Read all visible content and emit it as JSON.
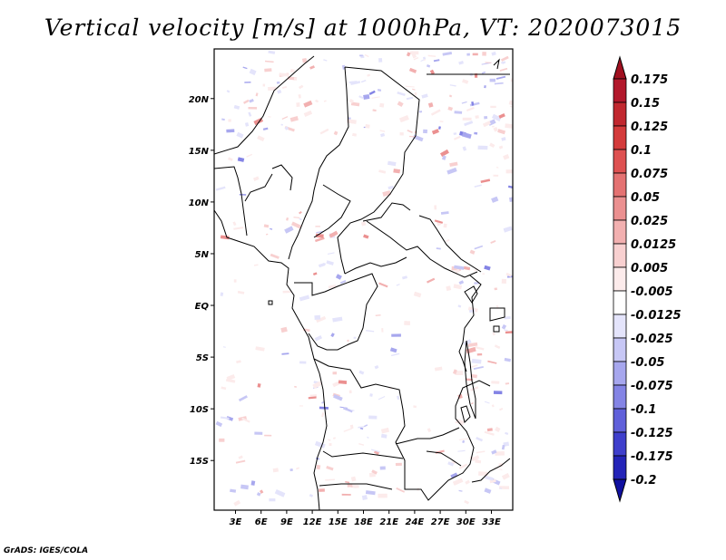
{
  "title": "Vertical velocity [m/s] at 1000hPa, VT: 2020073015",
  "credit": "GrADS: IGES/COLA",
  "map": {
    "lat_labels": [
      "20N",
      "15N",
      "10N",
      "5N",
      "EQ",
      "5S",
      "10S",
      "15S"
    ],
    "lat_values": [
      20,
      15,
      10,
      5,
      0,
      -5,
      -10,
      -15
    ],
    "lon_labels": [
      "3E",
      "6E",
      "9E",
      "12E",
      "15E",
      "18E",
      "21E",
      "24E",
      "27E",
      "30E",
      "33E"
    ],
    "lon_values": [
      3,
      6,
      9,
      12,
      15,
      18,
      21,
      24,
      27,
      30,
      33
    ],
    "lon_range": [
      0.5,
      35.5
    ],
    "lat_range": [
      -19.8,
      24.8
    ]
  },
  "colorbar": {
    "labels": [
      "0.175",
      "0.15",
      "0.125",
      "0.1",
      "0.075",
      "0.05",
      "0.025",
      "0.0125",
      "0.005",
      "-0.005",
      "-0.0125",
      "-0.025",
      "-0.05",
      "-0.075",
      "-0.1",
      "-0.125",
      "-0.175",
      "-0.2"
    ],
    "colors": [
      "#b2182b",
      "#c1282f",
      "#d43b3b",
      "#de5151",
      "#e47272",
      "#eb9090",
      "#f2b0b0",
      "#f8d0d0",
      "#fcebeb",
      "#ffffff",
      "#e4e4fb",
      "#c7c7f5",
      "#a7a7ee",
      "#8484e5",
      "#6060da",
      "#3f3fcc",
      "#2424b8",
      "#0c0ca0"
    ],
    "top_arrow_color": "#a01020",
    "bottom_arrow_color": "#1010a0"
  }
}
